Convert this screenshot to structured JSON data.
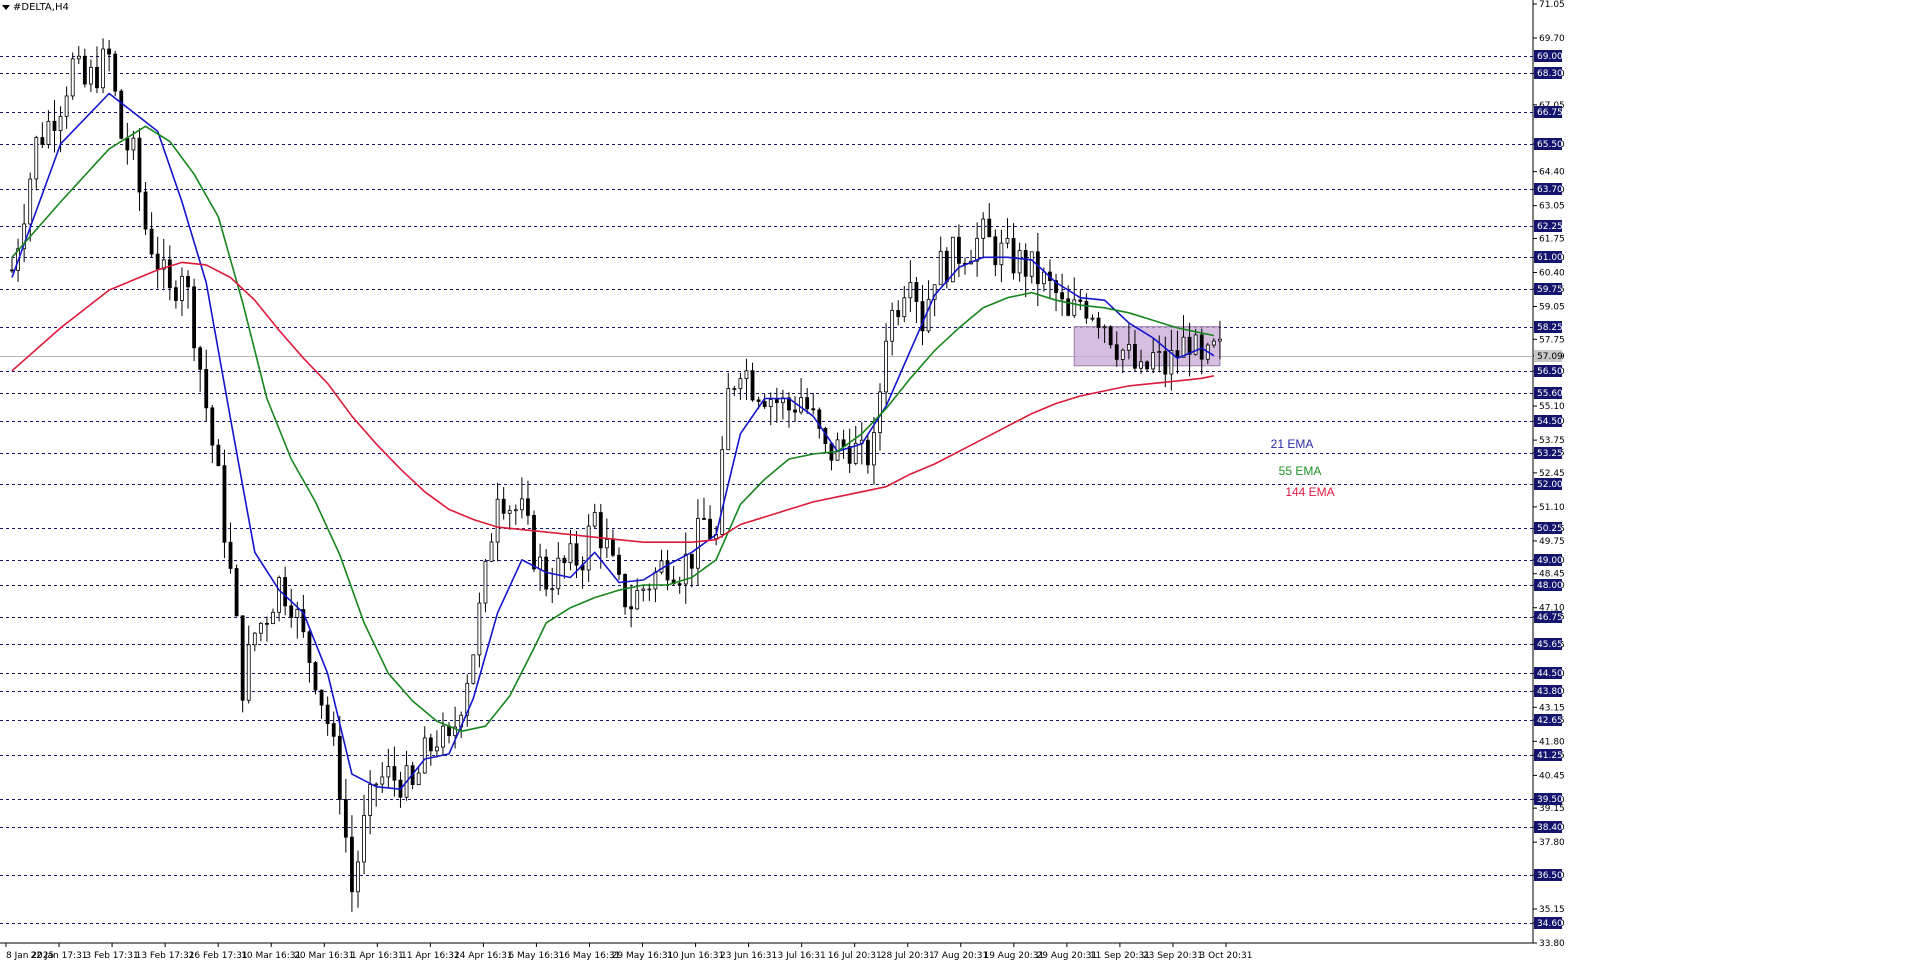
{
  "window": {
    "symbol_title": "#DELTA,H4"
  },
  "chart_data": {
    "type": "candlestick",
    "title": "#DELTA,H4",
    "ylim": [
      33.8,
      71.05
    ],
    "y_ticks": [
      "71.05",
      "69.70",
      "68.30",
      "67.05",
      "65.50",
      "64.40",
      "63.70",
      "63.05",
      "61.75",
      "61.00",
      "60.40",
      "59.75",
      "59.05",
      "57.75",
      "57.09",
      "56.50",
      "55.10",
      "54.50",
      "53.75",
      "53.25",
      "52.45",
      "51.10",
      "50.25",
      "49.75",
      "49.00",
      "48.45",
      "48.00",
      "47.10",
      "46.75",
      "45.65",
      "44.50",
      "43.80",
      "43.15",
      "42.65",
      "41.80",
      "41.25",
      "40.45",
      "39.50",
      "39.15",
      "38.40",
      "37.80",
      "36.50",
      "35.15",
      "34.60",
      "33.80"
    ],
    "highlighted_levels": [
      "69.00",
      "68.30",
      "66.75",
      "65.50",
      "63.70",
      "62.25",
      "61.00",
      "59.75",
      "58.25",
      "56.50",
      "55.60",
      "54.50",
      "53.25",
      "52.00",
      "50.25",
      "49.00",
      "48.00",
      "46.75",
      "45.65",
      "44.50",
      "43.80",
      "42.65",
      "41.25",
      "39.50",
      "38.40",
      "36.50",
      "34.60"
    ],
    "current_price": "57.09",
    "x_ticks": [
      "8 Jan 2025",
      "22 Jan 17:31",
      "3 Feb 17:31",
      "13 Feb 17:31",
      "26 Feb 17:31",
      "10 Mar 16:31",
      "20 Mar 16:31",
      "1 Apr 16:31",
      "11 Apr 16:31",
      "24 Apr 16:31",
      "6 May 16:31",
      "16 May 16:31",
      "29 May 16:31",
      "10 Jun 16:31",
      "23 Jun 16:31",
      "3 Jul 16:31",
      "16 Jul 20:31",
      "28 Jul 20:31",
      "7 Aug 20:31",
      "19 Aug 20:31",
      "29 Aug 20:31",
      "11 Sep 20:31",
      "23 Sep 20:31",
      "3 Oct 20:31"
    ],
    "price_path": [
      [
        0,
        60.5
      ],
      [
        2,
        63
      ],
      [
        4,
        65.5
      ],
      [
        6,
        66.3
      ],
      [
        8,
        67.2
      ],
      [
        10,
        68.6
      ],
      [
        12,
        67.8
      ],
      [
        14,
        68.4
      ],
      [
        16,
        68.9
      ],
      [
        18,
        65.8
      ],
      [
        20,
        65
      ],
      [
        22,
        62.2
      ],
      [
        24,
        60.9
      ],
      [
        26,
        59.4
      ],
      [
        28,
        60.7
      ],
      [
        30,
        58.2
      ],
      [
        32,
        55.1
      ],
      [
        34,
        52.1
      ],
      [
        36,
        48.4
      ],
      [
        38,
        44.1
      ],
      [
        40,
        46.1
      ],
      [
        42,
        46.9
      ],
      [
        44,
        48.1
      ],
      [
        46,
        47.5
      ],
      [
        48,
        45.8
      ],
      [
        50,
        44.5
      ],
      [
        52,
        42.6
      ],
      [
        54,
        40.1
      ],
      [
        56,
        35.9
      ],
      [
        58,
        38.4
      ],
      [
        60,
        40.2
      ],
      [
        62,
        40.4
      ],
      [
        64,
        40.3
      ],
      [
        66,
        39.8
      ],
      [
        68,
        41.2
      ],
      [
        70,
        42
      ],
      [
        72,
        41.5
      ],
      [
        74,
        43.5
      ],
      [
        76,
        45.5
      ],
      [
        78,
        48.3
      ],
      [
        80,
        52
      ],
      [
        82,
        51.2
      ],
      [
        84,
        50.8
      ],
      [
        86,
        49.3
      ],
      [
        88,
        48.2
      ],
      [
        90,
        48.6
      ],
      [
        92,
        48.9
      ],
      [
        94,
        49.2
      ],
      [
        96,
        50.7
      ],
      [
        98,
        49.4
      ],
      [
        100,
        47.8
      ],
      [
        102,
        47.3
      ],
      [
        104,
        47.9
      ],
      [
        106,
        48.4
      ],
      [
        108,
        49
      ],
      [
        110,
        48.7
      ],
      [
        112,
        49.2
      ],
      [
        114,
        50.5
      ],
      [
        116,
        49.8
      ],
      [
        118,
        55.5
      ],
      [
        120,
        56.9
      ],
      [
        122,
        56
      ],
      [
        124,
        55.7
      ],
      [
        126,
        55.3
      ],
      [
        128,
        55
      ],
      [
        130,
        55.5
      ],
      [
        132,
        54.5
      ],
      [
        134,
        53.2
      ],
      [
        136,
        53.4
      ],
      [
        138,
        53.6
      ],
      [
        140,
        53
      ],
      [
        142,
        53.4
      ],
      [
        144,
        58.2
      ],
      [
        146,
        59.3
      ],
      [
        148,
        60.8
      ],
      [
        150,
        58.5
      ],
      [
        152,
        60.5
      ],
      [
        154,
        60.8
      ],
      [
        156,
        61.2
      ],
      [
        158,
        61.5
      ],
      [
        160,
        61.8
      ],
      [
        162,
        61.3
      ],
      [
        164,
        61
      ],
      [
        166,
        60.8
      ],
      [
        168,
        60.5
      ],
      [
        170,
        60
      ],
      [
        172,
        59.5
      ],
      [
        174,
        58.4
      ],
      [
        176,
        59.3
      ],
      [
        178,
        59
      ],
      [
        180,
        58.5
      ],
      [
        182,
        57.6
      ],
      [
        184,
        57
      ],
      [
        186,
        56.2
      ],
      [
        188,
        57
      ],
      [
        190,
        56.6
      ],
      [
        192,
        57.2
      ],
      [
        194,
        57.8
      ],
      [
        196,
        56.5
      ],
      [
        198,
        57.2
      ]
    ],
    "series": [
      {
        "name": "21 EMA",
        "color": "#1414cc",
        "label_color": "#2a2aa8",
        "values": [
          [
            0,
            60.2
          ],
          [
            8,
            65.5
          ],
          [
            16,
            67.5
          ],
          [
            24,
            66
          ],
          [
            28,
            63.2
          ],
          [
            32,
            60
          ],
          [
            36,
            54.6
          ],
          [
            40,
            49.3
          ],
          [
            44,
            47.8
          ],
          [
            48,
            46.9
          ],
          [
            52,
            44.5
          ],
          [
            56,
            40.5
          ],
          [
            60,
            40
          ],
          [
            64,
            39.9
          ],
          [
            68,
            41.1
          ],
          [
            72,
            41.3
          ],
          [
            76,
            43.5
          ],
          [
            80,
            46.9
          ],
          [
            84,
            49
          ],
          [
            88,
            48.5
          ],
          [
            92,
            48.3
          ],
          [
            96,
            49.3
          ],
          [
            100,
            48.1
          ],
          [
            104,
            48.2
          ],
          [
            108,
            48.8
          ],
          [
            112,
            49.3
          ],
          [
            116,
            50
          ],
          [
            120,
            54
          ],
          [
            124,
            55.4
          ],
          [
            128,
            55.4
          ],
          [
            132,
            54.7
          ],
          [
            136,
            53.3
          ],
          [
            140,
            53.6
          ],
          [
            144,
            55.1
          ],
          [
            148,
            57.3
          ],
          [
            152,
            59.5
          ],
          [
            156,
            60.6
          ],
          [
            160,
            61
          ],
          [
            164,
            61
          ],
          [
            168,
            60.9
          ],
          [
            172,
            60
          ],
          [
            176,
            59.4
          ],
          [
            180,
            59.3
          ],
          [
            184,
            58.4
          ],
          [
            188,
            57.8
          ],
          [
            192,
            57
          ],
          [
            196,
            57.4
          ],
          [
            198,
            57.1
          ]
        ]
      },
      {
        "name": "55 EMA",
        "color": "#16861c",
        "label_color": "#1c9424",
        "values": [
          [
            0,
            61
          ],
          [
            8,
            63.2
          ],
          [
            16,
            65.3
          ],
          [
            22,
            66.2
          ],
          [
            26,
            65.6
          ],
          [
            30,
            64.3
          ],
          [
            34,
            62.6
          ],
          [
            38,
            59.2
          ],
          [
            42,
            55.4
          ],
          [
            46,
            53
          ],
          [
            50,
            51.3
          ],
          [
            54,
            49.2
          ],
          [
            58,
            46.5
          ],
          [
            62,
            44.5
          ],
          [
            66,
            43.4
          ],
          [
            70,
            42.6
          ],
          [
            74,
            42.2
          ],
          [
            78,
            42.4
          ],
          [
            82,
            43.6
          ],
          [
            86,
            45.5
          ],
          [
            88,
            46.5
          ],
          [
            92,
            47.1
          ],
          [
            96,
            47.5
          ],
          [
            100,
            47.8
          ],
          [
            104,
            48
          ],
          [
            108,
            48
          ],
          [
            112,
            48.3
          ],
          [
            116,
            49
          ],
          [
            120,
            51.2
          ],
          [
            124,
            52.2
          ],
          [
            128,
            53
          ],
          [
            132,
            53.2
          ],
          [
            136,
            53.3
          ],
          [
            140,
            54
          ],
          [
            144,
            55
          ],
          [
            148,
            56.2
          ],
          [
            152,
            57.3
          ],
          [
            156,
            58.2
          ],
          [
            160,
            59
          ],
          [
            164,
            59.4
          ],
          [
            168,
            59.6
          ],
          [
            172,
            59.3
          ],
          [
            176,
            59.1
          ],
          [
            180,
            59
          ],
          [
            184,
            58.8
          ],
          [
            188,
            58.5
          ],
          [
            192,
            58.2
          ],
          [
            196,
            58
          ],
          [
            198,
            57.9
          ]
        ]
      },
      {
        "name": "144 EMA",
        "color": "#dc1a3a",
        "label_color": "#e01a40",
        "values": [
          [
            0,
            56.5
          ],
          [
            8,
            58.2
          ],
          [
            16,
            59.7
          ],
          [
            24,
            60.5
          ],
          [
            28,
            60.8
          ],
          [
            32,
            60.7
          ],
          [
            36,
            60.2
          ],
          [
            40,
            59.3
          ],
          [
            44,
            58.1
          ],
          [
            48,
            57
          ],
          [
            52,
            56
          ],
          [
            56,
            54.7
          ],
          [
            60,
            53.6
          ],
          [
            64,
            52.6
          ],
          [
            68,
            51.7
          ],
          [
            72,
            51
          ],
          [
            76,
            50.6
          ],
          [
            80,
            50.3
          ],
          [
            84,
            50.2
          ],
          [
            88,
            50.1
          ],
          [
            92,
            50
          ],
          [
            96,
            49.9
          ],
          [
            100,
            49.8
          ],
          [
            104,
            49.7
          ],
          [
            108,
            49.7
          ],
          [
            112,
            49.7
          ],
          [
            116,
            49.8
          ],
          [
            120,
            50.4
          ],
          [
            124,
            50.7
          ],
          [
            128,
            51
          ],
          [
            132,
            51.3
          ],
          [
            136,
            51.5
          ],
          [
            140,
            51.7
          ],
          [
            144,
            51.9
          ],
          [
            148,
            52.4
          ],
          [
            152,
            52.8
          ],
          [
            156,
            53.3
          ],
          [
            160,
            53.8
          ],
          [
            164,
            54.3
          ],
          [
            168,
            54.8
          ],
          [
            172,
            55.2
          ],
          [
            176,
            55.5
          ],
          [
            180,
            55.7
          ],
          [
            184,
            55.9
          ],
          [
            188,
            56
          ],
          [
            192,
            56.1
          ],
          [
            196,
            56.2
          ],
          [
            198,
            56.3
          ]
        ]
      }
    ],
    "consolidation_box": {
      "x_start": 175,
      "x_end": 199,
      "y_low": 56.7,
      "y_high": 58.25,
      "color": "#c7a8d6"
    },
    "annotations": [
      "21 EMA",
      "55 EMA",
      "144 EMA"
    ],
    "grid": false,
    "legend": "right-middle"
  }
}
